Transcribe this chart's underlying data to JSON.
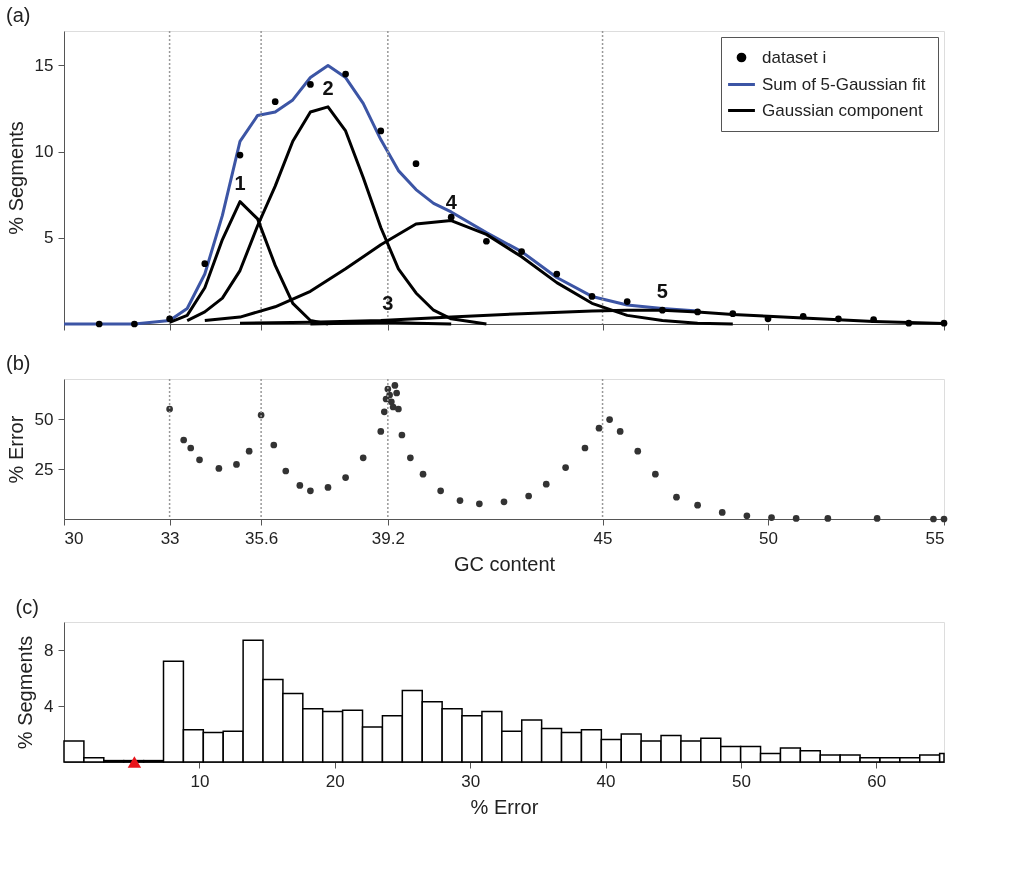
{
  "chart_data": [
    {
      "type": "line",
      "title": "(a)",
      "ylabel": "% Segments",
      "xlim": [
        30,
        55
      ],
      "ylim": [
        0,
        17
      ],
      "xticks": [
        30,
        33,
        35.6,
        39.2,
        {
          "value": 45.3,
          "label": null
        },
        50,
        55
      ],
      "yticks": [
        5,
        10,
        15
      ],
      "tick_labels": "y",
      "legend": "top right",
      "line_style": "solid",
      "series": [
        {
          "name": "dataset i",
          "type": "scatter",
          "marker": "circle",
          "color": "#000000",
          "x": [
            31,
            32,
            33,
            34,
            35,
            36,
            37,
            38,
            39,
            40,
            41,
            42,
            43,
            44,
            45,
            46,
            47,
            48,
            49,
            50,
            51,
            52,
            53,
            54,
            55
          ],
          "values": [
            0,
            0,
            0.3,
            3.5,
            9.8,
            12.9,
            13.9,
            14.5,
            11.2,
            9.3,
            6.2,
            4.8,
            4.2,
            2.9,
            1.6,
            1.3,
            0.8,
            0.7,
            0.6,
            0.3,
            0.45,
            0.3,
            0.25,
            0.05,
            0.05
          ]
        },
        {
          "name": "Sum of 5-Gaussian fit",
          "color": "#3c55a5",
          "x": [
            30,
            32,
            33,
            33.5,
            34,
            34.5,
            35,
            35.5,
            36,
            36.5,
            37,
            37.5,
            38,
            38.5,
            39,
            39.5,
            40,
            40.5,
            41,
            42,
            43,
            44,
            45,
            46,
            47,
            48
          ],
          "values": [
            0,
            0,
            0.2,
            0.9,
            2.9,
            6.3,
            10.6,
            12.1,
            12.3,
            13.0,
            14.3,
            15.0,
            14.3,
            12.8,
            10.7,
            8.9,
            7.8,
            7.0,
            6.5,
            5.3,
            4.2,
            2.7,
            1.6,
            1.1,
            0.9,
            0.75
          ]
        },
        {
          "name": "Gaussian component",
          "color": "#000000",
          "x": [
            33,
            33.5,
            34,
            34.5,
            35,
            35.5,
            36,
            36.5,
            37,
            37.5
          ],
          "values": [
            0.1,
            0.5,
            2.1,
            4.9,
            7.1,
            6.1,
            3.4,
            1.2,
            0.2,
            0
          ]
        },
        {
          "color": "#000000",
          "x": [
            33.5,
            34,
            34.5,
            35,
            35.5,
            36,
            36.5,
            37,
            37.5,
            38,
            38.5,
            39,
            39.5,
            40,
            40.5,
            41,
            42
          ],
          "values": [
            0.2,
            0.7,
            1.5,
            3.1,
            5.7,
            8.0,
            10.6,
            12.3,
            12.6,
            11.2,
            8.5,
            5.6,
            3.2,
            1.8,
            0.8,
            0.3,
            0
          ]
        },
        {
          "color": "#000000",
          "x": [
            37,
            38,
            39.2,
            40,
            41
          ],
          "values": [
            0,
            0.05,
            0.1,
            0.05,
            0
          ]
        },
        {
          "color": "#000000",
          "x": [
            34,
            35,
            36,
            37,
            38,
            39,
            40,
            41,
            42,
            43,
            44,
            45,
            46,
            47,
            48,
            49
          ],
          "values": [
            0.2,
            0.4,
            1.0,
            1.9,
            3.2,
            4.6,
            5.8,
            6.0,
            5.2,
            3.9,
            2.4,
            1.2,
            0.5,
            0.2,
            0.05,
            0
          ]
        },
        {
          "color": "#000000",
          "x": [
            35,
            37,
            39,
            41,
            43,
            45,
            46,
            47,
            48,
            49,
            50,
            51,
            52,
            53,
            54,
            55
          ],
          "values": [
            0.05,
            0.1,
            0.2,
            0.4,
            0.6,
            0.75,
            0.8,
            0.8,
            0.7,
            0.55,
            0.45,
            0.35,
            0.25,
            0.15,
            0.08,
            0.03
          ]
        }
      ],
      "ref_lines": [
        {
          "axis": "x",
          "value": 33,
          "color": "#999999",
          "line_style": "dotted"
        },
        {
          "axis": "x",
          "value": 35.6,
          "color": "#999999",
          "line_style": "dotted"
        },
        {
          "axis": "x",
          "value": 39.2,
          "color": "#999999",
          "line_style": "dotted"
        },
        {
          "axis": "x",
          "value": 45.3,
          "color": "#999999",
          "line_style": "dotted"
        }
      ],
      "annotations": [
        {
          "text": "1",
          "x": 35,
          "y": 7.1
        },
        {
          "text": "2",
          "x": 37.5,
          "y": 12.6
        },
        {
          "text": "3",
          "x": 39.2,
          "y": 0.1
        },
        {
          "text": "4",
          "x": 41,
          "y": 6.0
        },
        {
          "text": "5",
          "x": 47,
          "y": 0.8
        }
      ]
    },
    {
      "type": "scatter",
      "title": "(b)",
      "xlabel": "GC content",
      "ylabel": "% Error",
      "xlim": [
        30,
        55
      ],
      "ylim": [
        0,
        70
      ],
      "xticks": [
        30,
        33,
        35.6,
        39.2,
        {
          "value": 45.3,
          "label": "45"
        },
        50,
        55
      ],
      "yticks": [
        25,
        50
      ],
      "marker": "circle",
      "color": "#333333",
      "x": [
        33.0,
        33.4,
        33.6,
        33.85,
        34.4,
        34.9,
        35.26,
        35.6,
        35.96,
        36.3,
        36.7,
        37.0,
        37.5,
        38.0,
        38.5,
        39.0,
        39.1,
        39.15,
        39.2,
        39.25,
        39.3,
        39.35,
        39.4,
        39.45,
        39.5,
        39.6,
        39.84,
        40.2,
        40.7,
        41.25,
        41.8,
        42.5,
        43.2,
        43.7,
        44.25,
        44.8,
        45.2,
        45.5,
        45.8,
        46.3,
        46.8,
        47.4,
        48.0,
        48.7,
        49.4,
        50.1,
        50.8,
        51.7,
        53.1,
        54.7,
        55.0
      ],
      "values": [
        55,
        39.5,
        35.5,
        29.6,
        25.3,
        27.3,
        33.9,
        52,
        37,
        24,
        16.8,
        14.1,
        15.8,
        20.7,
        30.6,
        43.8,
        53.6,
        60,
        65,
        62,
        58.6,
        56,
        66.8,
        63,
        55,
        42,
        30.6,
        22.4,
        14.1,
        9.2,
        7.6,
        8.6,
        11.5,
        17.4,
        25.7,
        35.5,
        45.4,
        49.7,
        43.8,
        33.9,
        22.4,
        10.9,
        6.9,
        3.3,
        1.6,
        0.7,
        0.3,
        0.3,
        0.3,
        0,
        0
      ],
      "ref_lines": [
        {
          "axis": "x",
          "value": 33,
          "color": "#999999",
          "line_style": "dotted"
        },
        {
          "axis": "x",
          "value": 35.6,
          "color": "#999999",
          "line_style": "dotted"
        },
        {
          "axis": "x",
          "value": 39.2,
          "color": "#999999",
          "line_style": "dotted"
        },
        {
          "axis": "x",
          "value": 45.3,
          "color": "#999999",
          "line_style": "dotted"
        }
      ]
    },
    {
      "type": "histogram",
      "title": "(c)",
      "xlabel": "% Error",
      "ylabel": "% Segments",
      "xlim": [
        0,
        65
      ],
      "ylim": [
        0,
        10
      ],
      "xticks": [
        10,
        20,
        30,
        40,
        50,
        60
      ],
      "yticks": [
        4,
        8
      ],
      "color": "#ffffff",
      "bins": [
        0,
        1.47,
        2.94,
        4.41,
        5.88,
        7.35,
        8.82,
        10.29,
        11.76,
        13.23,
        14.7,
        16.17,
        17.64,
        19.11,
        20.58,
        22.05,
        23.52,
        24.99,
        26.46,
        27.93,
        29.4,
        30.87,
        32.34,
        33.81,
        35.28,
        36.75,
        38.22,
        39.69,
        41.16,
        42.63,
        44.1,
        45.57,
        47.04,
        48.51,
        49.98,
        51.45,
        52.92,
        54.39,
        55.86,
        57.33,
        58.8,
        60.27,
        61.74,
        63.21,
        64.68,
        65
      ],
      "values": [
        1.5,
        0.3,
        0.1,
        0.1,
        0.1,
        7.2,
        2.3,
        2.1,
        2.2,
        8.7,
        5.9,
        4.9,
        3.8,
        3.6,
        3.7,
        2.5,
        3.3,
        5.1,
        4.3,
        3.8,
        3.3,
        3.6,
        2.2,
        3.0,
        2.4,
        2.1,
        2.3,
        1.6,
        2.0,
        1.5,
        1.9,
        1.5,
        1.7,
        1.1,
        1.1,
        0.6,
        1.0,
        0.8,
        0.5,
        0.5,
        0.3,
        0.3,
        0.3,
        0.5,
        0.6
      ],
      "series": [
        {
          "type": "scatter",
          "color": "#e8141b",
          "marker": "triangle",
          "x": [
            5.2
          ],
          "values": [
            0
          ]
        }
      ]
    }
  ]
}
